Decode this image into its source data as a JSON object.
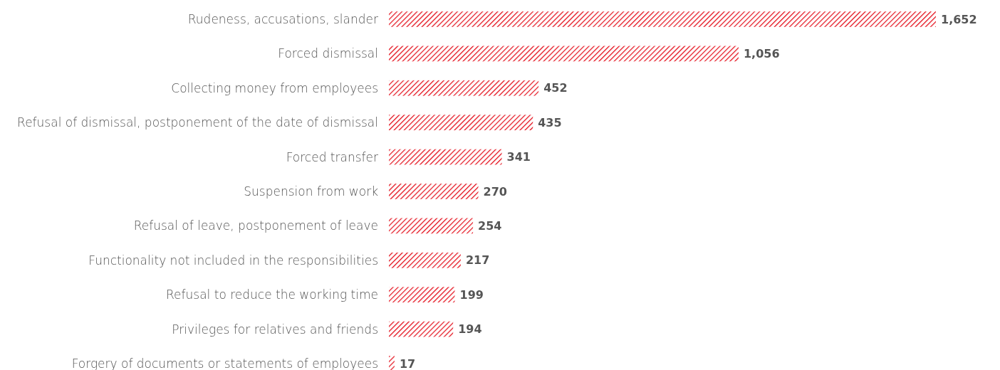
{
  "chart_data": {
    "type": "bar",
    "orientation": "horizontal",
    "value_labels": [
      "1,652",
      "1,056",
      "452",
      "435",
      "341",
      "270",
      "254",
      "217",
      "199",
      "194",
      "17"
    ],
    "color": "#e30613",
    "categories": [
      "Rudeness, accusations, slander",
      "Forced dismissal",
      "Collecting money from employees",
      "Refusal of dismissal, postponement of the date of dismissal",
      "Forced transfer",
      "Suspension from work",
      "Refusal of leave, postponement of leave",
      "Functionality not included in the responsibilities",
      "Refusal to reduce the working time",
      "Privileges for relatives and friends",
      "Forgery of documents or statements of employees"
    ],
    "values": [
      1652,
      1056,
      452,
      435,
      341,
      270,
      254,
      217,
      199,
      194,
      17
    ]
  }
}
